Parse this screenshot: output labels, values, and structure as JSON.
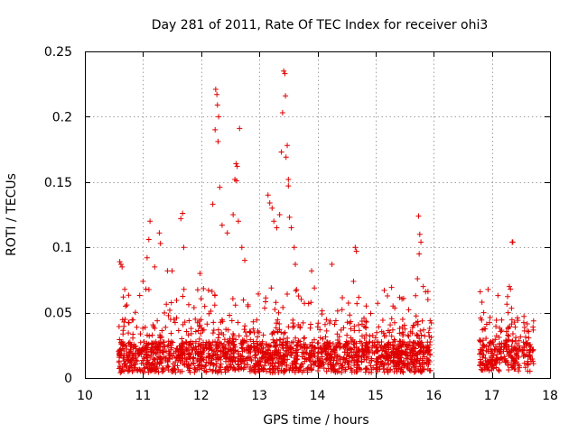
{
  "chart_data": {
    "type": "scatter",
    "title": "Day 281 of 2011, Rate Of TEC Index for receiver ohi3",
    "xlabel": "GPS time / hours",
    "ylabel": "ROTI / TECUs",
    "xlim": [
      10,
      18
    ],
    "ylim": [
      0,
      0.25
    ],
    "x_ticks": [
      10,
      11,
      12,
      13,
      14,
      15,
      16,
      17,
      18
    ],
    "x_tick_labels": [
      "10",
      "11",
      "12",
      "13",
      "14",
      "15",
      "16",
      "17",
      "18"
    ],
    "y_ticks": [
      0,
      0.05,
      0.1,
      0.15,
      0.2,
      0.25
    ],
    "y_tick_labels": [
      "0",
      "0.05",
      "0.1",
      "0.15",
      "0.2",
      "0.25"
    ],
    "grid": true,
    "marker": "plus",
    "series": [
      {
        "name": "ROTI",
        "color": "#e00000",
        "segments": [
          {
            "x_start": 10.58,
            "x_end": 15.96,
            "count": 1900,
            "baseline": 0.014
          },
          {
            "x_start": 16.78,
            "x_end": 17.72,
            "count": 280,
            "baseline": 0.015
          }
        ],
        "points": [
          {
            "x": 10.6,
            "y": 0.089
          },
          {
            "x": 10.62,
            "y": 0.087
          },
          {
            "x": 10.64,
            "y": 0.085
          },
          {
            "x": 10.66,
            "y": 0.062
          },
          {
            "x": 10.7,
            "y": 0.055
          },
          {
            "x": 11.0,
            "y": 0.074
          },
          {
            "x": 11.05,
            "y": 0.068
          },
          {
            "x": 11.07,
            "y": 0.092
          },
          {
            "x": 11.1,
            "y": 0.106
          },
          {
            "x": 11.12,
            "y": 0.12
          },
          {
            "x": 11.2,
            "y": 0.085
          },
          {
            "x": 11.28,
            "y": 0.111
          },
          {
            "x": 11.3,
            "y": 0.103
          },
          {
            "x": 11.42,
            "y": 0.082
          },
          {
            "x": 11.5,
            "y": 0.082
          },
          {
            "x": 11.65,
            "y": 0.122
          },
          {
            "x": 11.68,
            "y": 0.126
          },
          {
            "x": 11.7,
            "y": 0.1
          },
          {
            "x": 11.98,
            "y": 0.08
          },
          {
            "x": 12.2,
            "y": 0.133
          },
          {
            "x": 12.24,
            "y": 0.19
          },
          {
            "x": 12.25,
            "y": 0.221
          },
          {
            "x": 12.27,
            "y": 0.217
          },
          {
            "x": 12.28,
            "y": 0.209
          },
          {
            "x": 12.3,
            "y": 0.2
          },
          {
            "x": 12.29,
            "y": 0.181
          },
          {
            "x": 12.32,
            "y": 0.146
          },
          {
            "x": 12.36,
            "y": 0.117
          },
          {
            "x": 12.45,
            "y": 0.111
          },
          {
            "x": 12.55,
            "y": 0.125
          },
          {
            "x": 12.58,
            "y": 0.152
          },
          {
            "x": 12.6,
            "y": 0.164
          },
          {
            "x": 12.62,
            "y": 0.162
          },
          {
            "x": 12.61,
            "y": 0.151
          },
          {
            "x": 12.64,
            "y": 0.12
          },
          {
            "x": 12.66,
            "y": 0.191
          },
          {
            "x": 12.7,
            "y": 0.1
          },
          {
            "x": 12.75,
            "y": 0.09
          },
          {
            "x": 13.15,
            "y": 0.14
          },
          {
            "x": 13.18,
            "y": 0.134
          },
          {
            "x": 13.22,
            "y": 0.13
          },
          {
            "x": 13.25,
            "y": 0.12
          },
          {
            "x": 13.3,
            "y": 0.115
          },
          {
            "x": 13.35,
            "y": 0.125
          },
          {
            "x": 13.38,
            "y": 0.173
          },
          {
            "x": 13.4,
            "y": 0.203
          },
          {
            "x": 13.42,
            "y": 0.235
          },
          {
            "x": 13.44,
            "y": 0.233
          },
          {
            "x": 13.45,
            "y": 0.216
          },
          {
            "x": 13.46,
            "y": 0.169
          },
          {
            "x": 13.48,
            "y": 0.178
          },
          {
            "x": 13.5,
            "y": 0.152
          },
          {
            "x": 13.5,
            "y": 0.147
          },
          {
            "x": 13.52,
            "y": 0.123
          },
          {
            "x": 13.55,
            "y": 0.115
          },
          {
            "x": 13.6,
            "y": 0.1
          },
          {
            "x": 13.62,
            "y": 0.087
          },
          {
            "x": 13.9,
            "y": 0.082
          },
          {
            "x": 14.25,
            "y": 0.087
          },
          {
            "x": 14.65,
            "y": 0.1
          },
          {
            "x": 14.67,
            "y": 0.097
          },
          {
            "x": 14.62,
            "y": 0.074
          },
          {
            "x": 15.74,
            "y": 0.124
          },
          {
            "x": 15.76,
            "y": 0.11
          },
          {
            "x": 15.78,
            "y": 0.104
          },
          {
            "x": 15.75,
            "y": 0.095
          },
          {
            "x": 15.72,
            "y": 0.076
          },
          {
            "x": 15.82,
            "y": 0.07
          },
          {
            "x": 15.86,
            "y": 0.066
          },
          {
            "x": 15.9,
            "y": 0.06
          },
          {
            "x": 16.8,
            "y": 0.066
          },
          {
            "x": 16.83,
            "y": 0.058
          },
          {
            "x": 16.86,
            "y": 0.05
          },
          {
            "x": 17.3,
            "y": 0.07
          },
          {
            "x": 17.32,
            "y": 0.068
          },
          {
            "x": 17.35,
            "y": 0.104
          },
          {
            "x": 17.36,
            "y": 0.104
          },
          {
            "x": 17.28,
            "y": 0.05
          }
        ]
      }
    ]
  }
}
